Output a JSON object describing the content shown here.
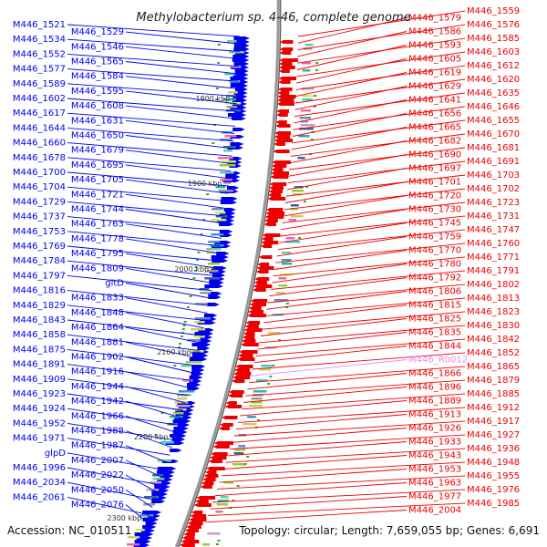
{
  "title": "Methylobacterium sp. 4-46, complete genome",
  "accession": "Accession: NC_010511",
  "topology": "Topology: circular; Length: 7,659,055 bp; Genes: 6,691",
  "colors": {
    "forward": "#0000ee",
    "reverse": "#ee0000",
    "rna": "#ee88ee",
    "backbone": "#808080"
  },
  "ticks": [
    "1800 kbp",
    "1900 kbp",
    "2000 kbp",
    "2100 kbp",
    "2200 kbp",
    "2300 kbp"
  ],
  "left_labels": [
    "M446_1521",
    "M446_1529",
    "M446_1534",
    "M446_1546",
    "M446_1552",
    "M446_1565",
    "M446_1577",
    "M446_1584",
    "M446_1589",
    "M446_1595",
    "M446_1602",
    "M446_1608",
    "M446_1617",
    "M446_1631",
    "M446_1644",
    "M446_1650",
    "M446_1660",
    "M446_1679",
    "M446_1678",
    "M446_1695",
    "M446_1700",
    "M446_1705",
    "M446_1704",
    "M446_1721",
    "M446_1729",
    "M446_1744",
    "M446_1737",
    "M446_1763",
    "M446_1753",
    "M446_1778",
    "M446_1769",
    "M446_1795",
    "M446_1784",
    "M446_1809",
    "M446_1797",
    "gltD",
    "M446_1816",
    "M446_1833",
    "M446_1829",
    "M446_1848",
    "M446_1843",
    "M446_1864",
    "M446_1858",
    "M446_1881",
    "M446_1875",
    "M446_1902",
    "M446_1891",
    "M446_1916",
    "M446_1909",
    "M446_1944",
    "M446_1923",
    "M446_1942",
    "M446_1924",
    "M446_1966",
    "M446_1952",
    "M446_1988",
    "M446_1971",
    "M446_1987",
    "glpD",
    "M446_2007",
    "M446_1996",
    "M446_2022",
    "M446_2034",
    "M446_2050",
    "M446_2061",
    "M446_2076"
  ],
  "right_labels": [
    "M446_1559",
    "M446_1579",
    "M446_1576",
    "M446_1586",
    "M446_1585",
    "M446_1593",
    "M446_1603",
    "M446_1605",
    "M446_1612",
    "M446_1619",
    "M446_1620",
    "M446_1629",
    "M446_1635",
    "M446_1641",
    "M446_1646",
    "M446_1656",
    "M446_1655",
    "M446_1665",
    "M446_1670",
    "M446_1682",
    "M446_1681",
    "M446_1690",
    "M446_1691",
    "M446_1697",
    "M446_1703",
    "M446_1701",
    "M446_1702",
    "M446_1720",
    "M446_1723",
    "M446_1730",
    "M446_1731",
    "M446_1745",
    "M446_1747",
    "M446_1759",
    "M446_1760",
    "M446_1770",
    "M446_1771",
    "M446_1780",
    "M446_1791",
    "M446_1792",
    "M446_1802",
    "M446_1806",
    "M446_1813",
    "M446_1815",
    "M446_1823",
    "M446_1825",
    "M446_1830",
    "M446_1835",
    "M446_1842",
    "M446_1844",
    "M446_1852",
    "M446_R0012",
    "M446_1865",
    "M446_1866",
    "M446_1879",
    "M446_1896",
    "M446_1885",
    "M446_1889",
    "M446_1912",
    "M446_1913",
    "M446_1917",
    "M446_1926",
    "M446_1927",
    "M446_1933",
    "M446_1936",
    "M446_1943",
    "M446_1948",
    "M446_1953",
    "M446_1955",
    "M446_1963",
    "M446_1976",
    "M446_1977",
    "M446_1985",
    "M446_2004"
  ]
}
